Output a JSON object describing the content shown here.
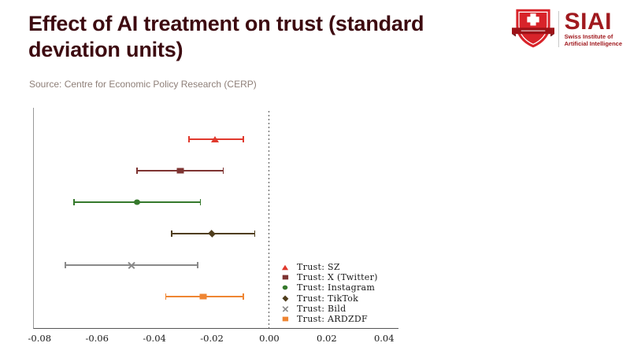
{
  "header": {
    "title_line1": "Effect of AI treatment on trust (standard",
    "title_line2": "deviation units)",
    "title_color": "#3d0a10",
    "source": "Source: Centre for Economic Policy Research (CERP)"
  },
  "logo": {
    "acronym": "SIAI",
    "subtitle_line1": "Swiss Institute of",
    "subtitle_line2": "Artificial Intelligence",
    "shield_color": "#d8232a",
    "ribbon_color": "#9e1218",
    "text_color": "#a0191e",
    "shield_icon": "swiss-shield-cross-icon"
  },
  "chart_data": {
    "type": "scatter",
    "subtype": "horizontal-errorbar-coefficient-plot",
    "title": "Effect of AI treatment on trust (standard deviation units)",
    "xlabel": "",
    "ylabel": "",
    "xlim": [
      -0.082,
      0.045
    ],
    "xticks": [
      "-0.08",
      "-0.06",
      "-0.04",
      "-0.02",
      "0.00",
      "0.02",
      "0.04"
    ],
    "xtick_values": [
      -0.08,
      -0.06,
      -0.04,
      -0.02,
      0.0,
      0.02,
      0.04
    ],
    "grid": false,
    "zero_line": {
      "value": 0,
      "style": "dashed",
      "color": "#555555"
    },
    "legend_position": "inside lower right",
    "series": [
      {
        "name": "Trust: SZ",
        "estimate": -0.019,
        "ci_low": -0.028,
        "ci_high": -0.009,
        "marker": "triangle",
        "color": "#e0392d"
      },
      {
        "name": "Trust: X (Twitter)",
        "estimate": -0.031,
        "ci_low": -0.046,
        "ci_high": -0.016,
        "marker": "square",
        "color": "#7e3432"
      },
      {
        "name": "Trust: Instagram",
        "estimate": -0.046,
        "ci_low": -0.068,
        "ci_high": -0.024,
        "marker": "circle",
        "color": "#35792c"
      },
      {
        "name": "Trust: TikTok",
        "estimate": -0.02,
        "ci_low": -0.034,
        "ci_high": -0.005,
        "marker": "diamond",
        "color": "#4f3d1c"
      },
      {
        "name": "Trust: Bild",
        "estimate": -0.048,
        "ci_low": -0.071,
        "ci_high": -0.025,
        "marker": "x",
        "color": "#8a8a8a"
      },
      {
        "name": "Trust: ARDZDF",
        "estimate": -0.023,
        "ci_low": -0.036,
        "ci_high": -0.009,
        "marker": "square",
        "color": "#ef8532"
      }
    ]
  }
}
